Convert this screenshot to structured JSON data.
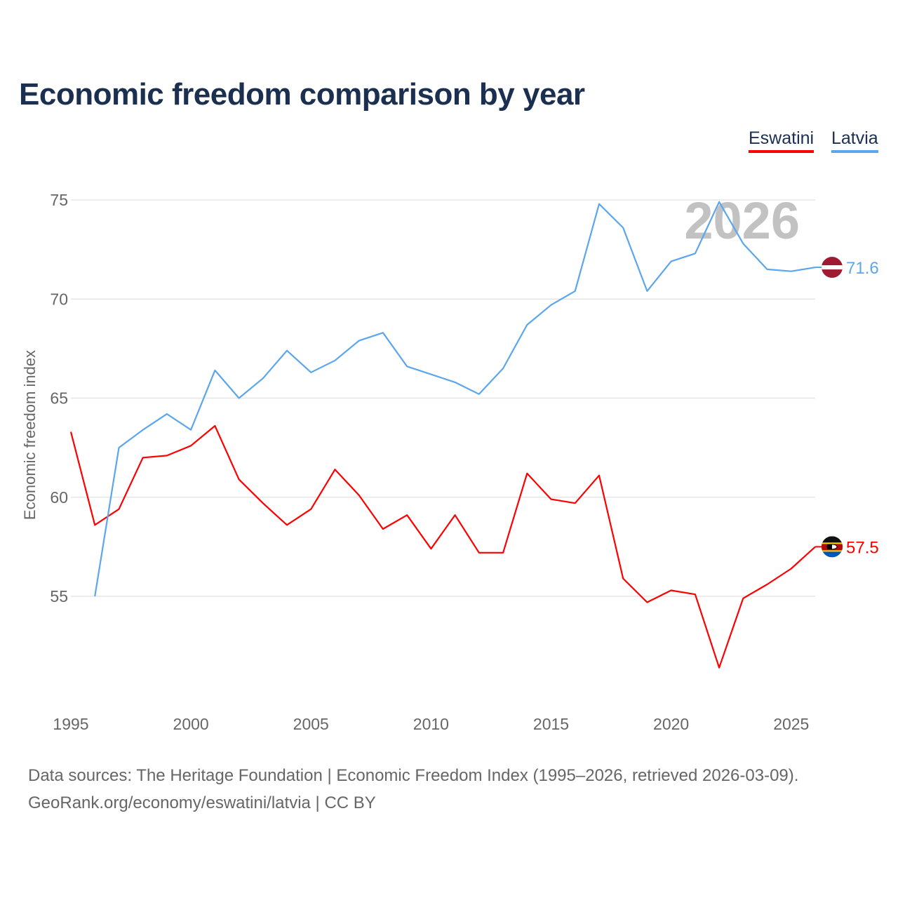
{
  "chart_data": {
    "type": "line",
    "title": "Economic freedom comparison by year",
    "xlabel": "",
    "ylabel": "Economic freedom index",
    "xlim": [
      1995,
      2026
    ],
    "ylim": [
      50,
      76
    ],
    "yticks": [
      55,
      60,
      65,
      70,
      75
    ],
    "xticks": [
      1995,
      2000,
      2005,
      2010,
      2015,
      2020,
      2025
    ],
    "grid": true,
    "legend_position": "top-right",
    "watermark_year": "2026",
    "series": [
      {
        "name": "Eswatini",
        "color": "#ff0000",
        "end_label": "57.5",
        "flag": "eswatini-flag",
        "x": [
          1995,
          1996,
          1997,
          1998,
          1999,
          2000,
          2001,
          2002,
          2003,
          2004,
          2005,
          2006,
          2007,
          2008,
          2009,
          2010,
          2011,
          2012,
          2013,
          2014,
          2015,
          2016,
          2017,
          2018,
          2019,
          2020,
          2021,
          2022,
          2023,
          2024,
          2025,
          2026
        ],
        "values": [
          63.3,
          58.6,
          59.4,
          62.0,
          62.1,
          62.6,
          63.6,
          60.9,
          59.7,
          58.6,
          59.4,
          61.4,
          60.1,
          58.4,
          59.1,
          57.4,
          59.1,
          57.2,
          57.2,
          61.2,
          59.9,
          59.7,
          61.1,
          55.9,
          54.7,
          55.3,
          55.1,
          51.4,
          54.9,
          55.6,
          56.4,
          57.5
        ]
      },
      {
        "name": "Latvia",
        "color": "#5ba6ec",
        "end_label": "71.6",
        "flag": "latvia-flag",
        "x": [
          1996,
          1997,
          1998,
          1999,
          2000,
          2001,
          2002,
          2003,
          2004,
          2005,
          2006,
          2007,
          2008,
          2009,
          2010,
          2011,
          2012,
          2013,
          2014,
          2015,
          2016,
          2017,
          2018,
          2019,
          2020,
          2021,
          2022,
          2023,
          2024,
          2025,
          2026
        ],
        "values": [
          55.0,
          62.5,
          63.4,
          64.2,
          63.4,
          66.4,
          65.0,
          66.0,
          67.4,
          66.3,
          66.9,
          67.9,
          68.3,
          66.6,
          66.2,
          65.8,
          65.2,
          66.5,
          68.7,
          69.7,
          70.4,
          74.8,
          73.6,
          70.4,
          71.9,
          72.3,
          74.9,
          72.8,
          71.5,
          71.4,
          71.6
        ]
      }
    ]
  },
  "footer": {
    "line1": "Data sources: The Heritage Foundation | Economic Freedom Index (1995–2026, retrieved 2026-03-09).",
    "line2": "GeoRank.org/economy/eswatini/latvia | CC BY"
  }
}
